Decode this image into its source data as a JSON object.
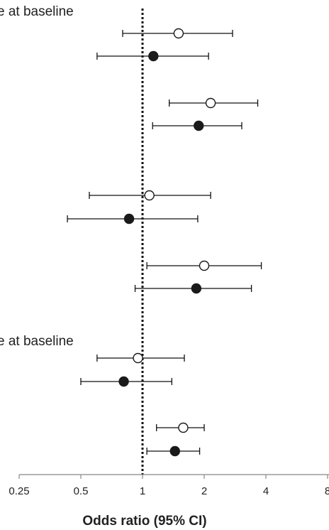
{
  "chart_data": {
    "type": "forest",
    "xlabel": "Odds ratio (95% CI)",
    "x_scale": "log2",
    "xlim": [
      0.25,
      8
    ],
    "xticks": [
      0.25,
      0.5,
      1,
      2,
      4,
      8
    ],
    "xtick_labels": [
      "0.25",
      "0.5",
      "1",
      "2",
      "4",
      "8"
    ],
    "reference_line": 1,
    "section_labels": [
      "e at baseline",
      "e at baseline"
    ],
    "rows": [
      {
        "marker": "open",
        "or": 1.5,
        "lower": 0.8,
        "upper": 2.75
      },
      {
        "marker": "filled",
        "or": 1.13,
        "lower": 0.6,
        "upper": 2.1
      },
      {
        "marker": "open",
        "or": 2.15,
        "lower": 1.35,
        "upper": 3.65
      },
      {
        "marker": "filled",
        "or": 1.88,
        "lower": 1.12,
        "upper": 3.05
      },
      {
        "marker": "open",
        "or": 1.08,
        "lower": 0.55,
        "upper": 2.15
      },
      {
        "marker": "filled",
        "or": 0.86,
        "lower": 0.43,
        "upper": 1.86
      },
      {
        "marker": "open",
        "or": 2.0,
        "lower": 1.05,
        "upper": 3.8
      },
      {
        "marker": "filled",
        "or": 1.83,
        "lower": 0.92,
        "upper": 3.4
      },
      {
        "marker": "open",
        "or": 0.95,
        "lower": 0.6,
        "upper": 1.6
      },
      {
        "marker": "filled",
        "or": 0.81,
        "lower": 0.5,
        "upper": 1.39
      },
      {
        "marker": "open",
        "or": 1.58,
        "lower": 1.17,
        "upper": 2.0
      },
      {
        "marker": "filled",
        "or": 1.44,
        "lower": 1.05,
        "upper": 1.9
      }
    ],
    "grid": false,
    "legend": "none"
  }
}
